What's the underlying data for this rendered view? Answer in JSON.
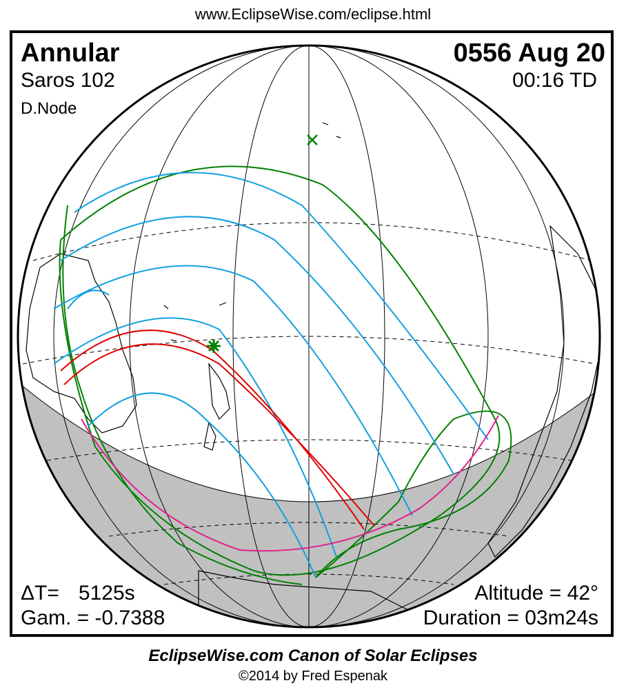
{
  "header_url": "www.EclipseWise.com/eclipse.html",
  "eclipse": {
    "type": "Annular",
    "date": "0556 Aug 20",
    "saros": "Saros 102",
    "time": "00:16 TD",
    "node": "D.Node"
  },
  "stats": {
    "delta_t_label": "ΔT=",
    "delta_t_value": "5125s",
    "gamma": "Gam. = -0.7388",
    "altitude": "Altitude = 42°",
    "duration": "Duration = 03m24s"
  },
  "footer": {
    "title": "EclipseWise.com Canon of Solar Eclipses",
    "copyright": "©2014 by Fred Espenak"
  },
  "colors": {
    "central_path": "#e00000",
    "penumbra_limits": "#00a0e0",
    "outer_limits": "#008000",
    "rise_set_curve": "#e0208c",
    "night_shade": "#c0c0c0",
    "coastline": "#000000",
    "greatest_eclipse_marker": "#008000"
  }
}
